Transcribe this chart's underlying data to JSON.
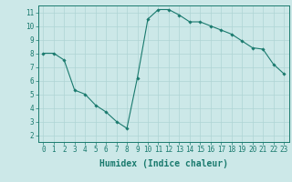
{
  "x": [
    0,
    1,
    2,
    3,
    4,
    5,
    6,
    7,
    8,
    9,
    10,
    11,
    12,
    13,
    14,
    15,
    16,
    17,
    18,
    19,
    20,
    21,
    22,
    23
  ],
  "y": [
    8.0,
    8.0,
    7.5,
    5.3,
    5.0,
    4.2,
    3.7,
    3.0,
    2.5,
    6.2,
    10.5,
    11.2,
    11.2,
    10.8,
    10.3,
    10.3,
    10.0,
    9.7,
    9.4,
    8.9,
    8.4,
    8.3,
    7.2,
    6.5
  ],
  "line_color": "#1a7a6e",
  "marker": "D",
  "marker_size": 1.8,
  "bg_color": "#cce8e8",
  "grid_color": "#afd4d4",
  "xlabel": "Humidex (Indice chaleur)",
  "xlim": [
    -0.5,
    23.5
  ],
  "ylim": [
    1.5,
    11.5
  ],
  "yticks": [
    2,
    3,
    4,
    5,
    6,
    7,
    8,
    9,
    10,
    11
  ],
  "xticks": [
    0,
    1,
    2,
    3,
    4,
    5,
    6,
    7,
    8,
    9,
    10,
    11,
    12,
    13,
    14,
    15,
    16,
    17,
    18,
    19,
    20,
    21,
    22,
    23
  ],
  "tick_fontsize": 5.5,
  "label_fontsize": 7.0,
  "linewidth": 0.8
}
